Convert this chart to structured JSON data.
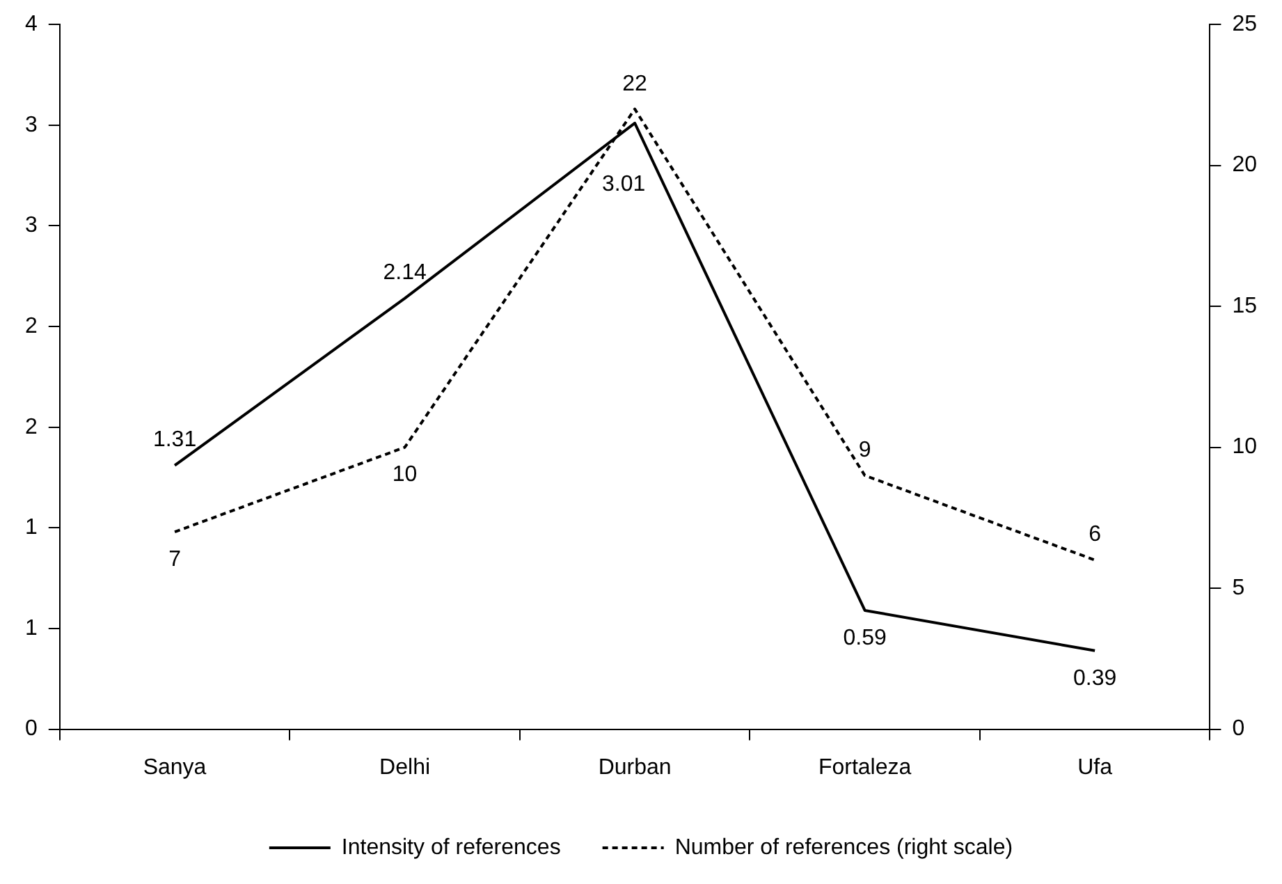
{
  "chart_data": {
    "type": "line",
    "categories": [
      "Sanya",
      "Delhi",
      "Durban",
      "Fortaleza",
      "Ufa"
    ],
    "series": [
      {
        "name": "Intensity of references",
        "color": "#000000",
        "values": [
          1.31,
          2.14,
          3.01,
          0.59,
          0.39
        ],
        "line_style": "solid"
      },
      {
        "name": "Number of references (right scale)",
        "color": "#000000",
        "values": [
          7,
          10,
          22,
          9,
          6
        ],
        "axis": "y2",
        "line_style": "dashed"
      }
    ],
    "ylim": [
      0,
      3.5
    ],
    "yticks": [
      0,
      {
        "value": 0.5,
        "label": "1"
      },
      1,
      {
        "value": 1.5,
        "label": "2"
      },
      2,
      {
        "value": 2.5,
        "label": "3"
      },
      3,
      {
        "value": 3.5,
        "label": "4"
      }
    ],
    "y2lim": [
      0,
      25
    ],
    "y2ticks": [
      0,
      5,
      10,
      15,
      20,
      25
    ],
    "data_labels": true,
    "legend": "bottom",
    "grid": false,
    "marker": "none"
  }
}
